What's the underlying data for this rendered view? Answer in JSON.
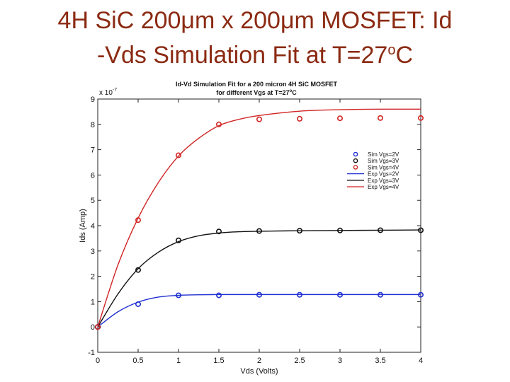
{
  "slide": {
    "title_line1": "4H SiC 200μm x 200μm MOSFET: Id",
    "title_line2_pre": "-Vds Simulation Fit at T=27",
    "title_line2_sup": "o",
    "title_line2_post": "C"
  },
  "chart_data": {
    "type": "scatter",
    "title": "Id-Vd Simulation Fit for a 200 micron 4H SiC MOSFET",
    "subtitle_pre": "for different Vgs at T=27",
    "subtitle_sup": "o",
    "subtitle_post": "C",
    "xlabel": "Vds (Volts)",
    "ylabel": "Ids (Amp)",
    "y_exponent_base": "x 10",
    "y_exponent_power": "-7",
    "xlim": [
      0,
      4
    ],
    "ylim": [
      -1,
      9
    ],
    "xticks": [
      "0",
      "0.5",
      "1",
      "1.5",
      "2",
      "2.5",
      "3",
      "3.5",
      "4"
    ],
    "yticks": [
      "-1",
      "0",
      "1",
      "2",
      "3",
      "4",
      "5",
      "6",
      "7",
      "8",
      "9"
    ],
    "grid": false,
    "legend_position": "right",
    "markers": [
      {
        "name": "Sim Vgs=2V",
        "color": "#1f2fd0",
        "x": [
          0,
          0.5,
          1,
          1.5,
          2,
          2.5,
          3,
          3.5,
          4
        ],
        "y": [
          0,
          0.9,
          1.25,
          1.25,
          1.27,
          1.27,
          1.27,
          1.27,
          1.27
        ]
      },
      {
        "name": "Sim Vgs=3V",
        "color": "#111111",
        "x": [
          0,
          0.5,
          1,
          1.5,
          2,
          2.5,
          3,
          3.5,
          4
        ],
        "y": [
          0,
          2.25,
          3.42,
          3.77,
          3.79,
          3.8,
          3.81,
          3.82,
          3.82
        ]
      },
      {
        "name": "Sim Vgs=4V",
        "color": "#d22424",
        "x": [
          0,
          0.5,
          1,
          1.5,
          2,
          2.5,
          3,
          3.5,
          4
        ],
        "y": [
          0,
          4.22,
          6.78,
          8.0,
          8.2,
          8.22,
          8.24,
          8.25,
          8.25
        ]
      }
    ],
    "lines": [
      {
        "name": "Exp Vgs=2V",
        "color": "#1f2fd0",
        "x": [
          0,
          0.25,
          0.5,
          0.75,
          1,
          1.25,
          1.5,
          2,
          2.5,
          3,
          3.5,
          4
        ],
        "y": [
          0,
          0.6,
          0.98,
          1.18,
          1.25,
          1.27,
          1.28,
          1.28,
          1.28,
          1.28,
          1.28,
          1.28
        ]
      },
      {
        "name": "Exp Vgs=3V",
        "color": "#111111",
        "x": [
          0,
          0.25,
          0.5,
          0.75,
          1,
          1.25,
          1.5,
          1.75,
          2,
          2.5,
          3,
          3.5,
          4
        ],
        "y": [
          0,
          1.3,
          2.3,
          2.95,
          3.37,
          3.6,
          3.71,
          3.76,
          3.78,
          3.8,
          3.81,
          3.82,
          3.83
        ]
      },
      {
        "name": "Exp Vgs=4V",
        "color": "#d22424",
        "x": [
          0,
          0.25,
          0.5,
          0.75,
          1,
          1.25,
          1.5,
          1.75,
          2,
          2.5,
          3,
          3.5,
          4
        ],
        "y": [
          0,
          2.45,
          4.3,
          5.7,
          6.75,
          7.45,
          7.95,
          8.2,
          8.35,
          8.52,
          8.58,
          8.6,
          8.6
        ]
      }
    ]
  }
}
